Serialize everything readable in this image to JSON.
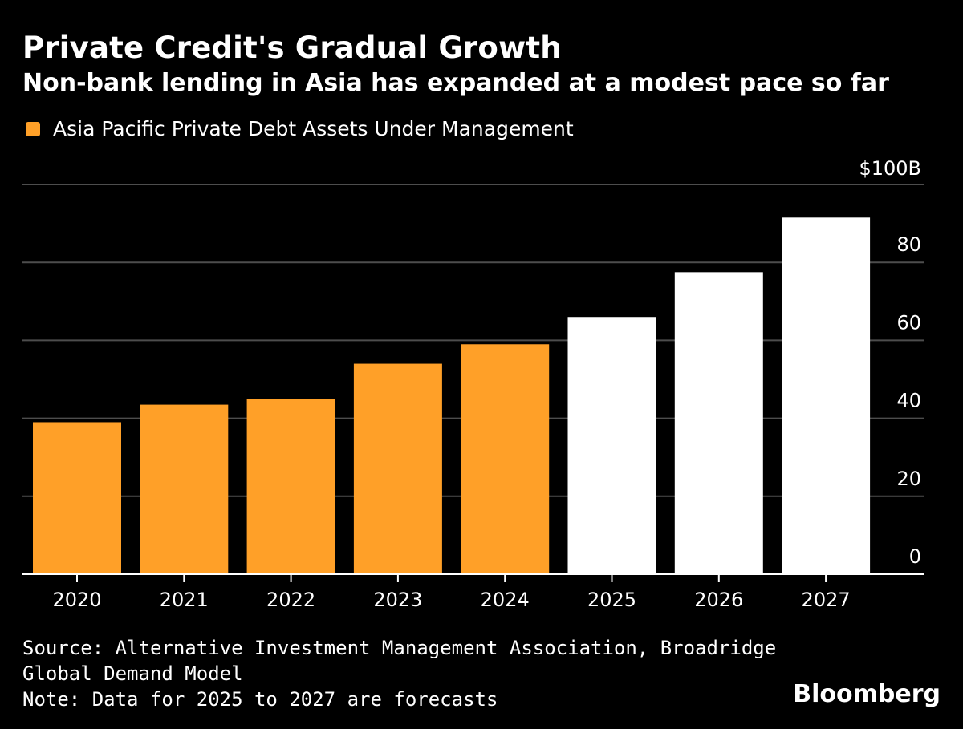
{
  "title": "Private Credit's Gradual Growth",
  "subtitle": "Non-bank lending in Asia has expanded at a modest pace so far",
  "legend_label": "Asia Pacific Private Debt Assets Under Management",
  "source": "Source: Alternative Investment Management Association, Broadridge Global Demand Model",
  "note": "Note: Data for 2025 to 2027 are forecasts",
  "brand": "Bloomberg",
  "colors": {
    "actual": "#ffa028",
    "forecast": "#ffffff",
    "grid": "#4d4d4d",
    "axis": "#ffffff",
    "background": "#000000"
  },
  "chart_data": {
    "type": "bar",
    "categories": [
      "2020",
      "2021",
      "2022",
      "2023",
      "2024",
      "2025",
      "2026",
      "2027"
    ],
    "values": [
      39,
      43.5,
      45,
      54,
      59,
      66,
      77.5,
      91.5
    ],
    "forecast_from_index": 5,
    "ylim": [
      0,
      100
    ],
    "yticks": [
      0,
      20,
      40,
      60,
      80,
      100
    ],
    "ytick_labels": [
      "0",
      "20",
      "40",
      "60",
      "80",
      "$100B"
    ],
    "yaxis_position": "right",
    "grid": true
  }
}
